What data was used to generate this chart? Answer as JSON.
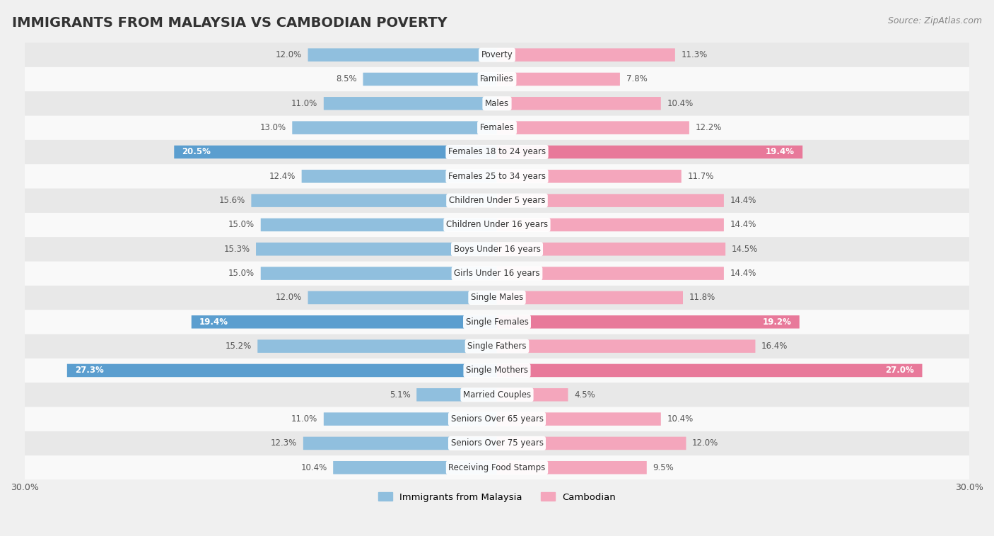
{
  "title": "IMMIGRANTS FROM MALAYSIA VS CAMBODIAN POVERTY",
  "source": "Source: ZipAtlas.com",
  "categories": [
    "Poverty",
    "Families",
    "Males",
    "Females",
    "Females 18 to 24 years",
    "Females 25 to 34 years",
    "Children Under 5 years",
    "Children Under 16 years",
    "Boys Under 16 years",
    "Girls Under 16 years",
    "Single Males",
    "Single Females",
    "Single Fathers",
    "Single Mothers",
    "Married Couples",
    "Seniors Over 65 years",
    "Seniors Over 75 years",
    "Receiving Food Stamps"
  ],
  "malaysia_values": [
    12.0,
    8.5,
    11.0,
    13.0,
    20.5,
    12.4,
    15.6,
    15.0,
    15.3,
    15.0,
    12.0,
    19.4,
    15.2,
    27.3,
    5.1,
    11.0,
    12.3,
    10.4
  ],
  "cambodian_values": [
    11.3,
    7.8,
    10.4,
    12.2,
    19.4,
    11.7,
    14.4,
    14.4,
    14.5,
    14.4,
    11.8,
    19.2,
    16.4,
    27.0,
    4.5,
    10.4,
    12.0,
    9.5
  ],
  "malaysia_color": "#90bfde",
  "cambodian_color": "#f4a6bc",
  "malaysia_highlight_color": "#5b9ecf",
  "cambodian_highlight_color": "#e8799a",
  "highlight_rows": [
    4,
    11,
    13
  ],
  "axis_max": 30.0,
  "bar_height": 0.52,
  "background_color": "#f0f0f0",
  "row_color_odd": "#f9f9f9",
  "row_color_even": "#e8e8e8",
  "legend_malaysia": "Immigrants from Malaysia",
  "legend_cambodian": "Cambodian",
  "title_fontsize": 14,
  "label_fontsize": 8.5,
  "value_fontsize": 8.5,
  "source_fontsize": 9
}
